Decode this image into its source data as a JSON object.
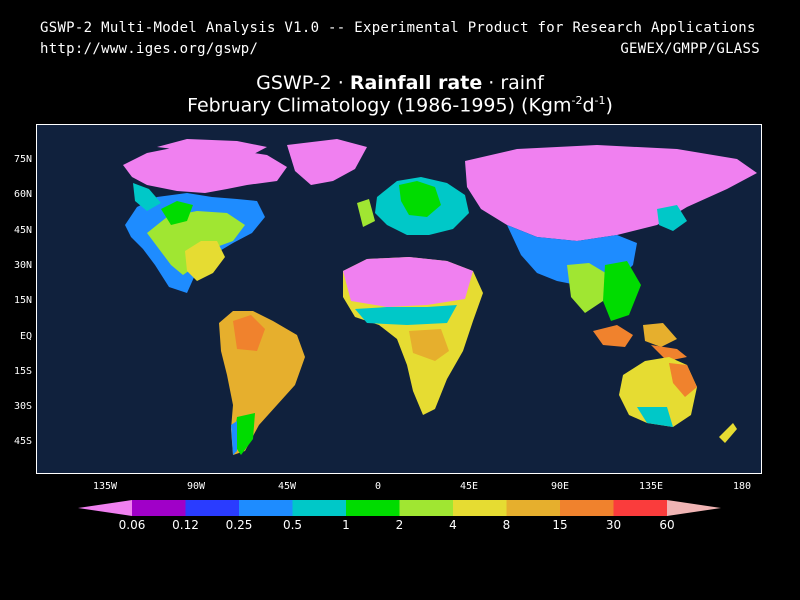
{
  "header": {
    "line1": "GSWP-2 Multi-Model Analysis V1.0 -- Experimental Product for Research Applications",
    "url": "http://www.iges.org/gswp/",
    "credit": "GEWEX/GMPP/GLASS"
  },
  "title": {
    "part1": "GSWP-2 · ",
    "bold": "Rainfall rate",
    "part2": " · rainf",
    "line2a": "February Climatology (1986-1995) (Kgm",
    "sup1": "-2",
    "line2b": "d",
    "sup2": "-1",
    "line2c": ")"
  },
  "map": {
    "ocean_color": "#10213d",
    "lat_labels": [
      "75N",
      "60N",
      "45N",
      "30N",
      "15N",
      "EQ",
      "15S",
      "30S",
      "45S"
    ],
    "lon_labels": [
      "135W",
      "90W",
      "45W",
      "0",
      "45E",
      "90E",
      "135E",
      "180"
    ]
  },
  "colorbar": {
    "colors": [
      "#f080f0",
      "#a000c8",
      "#2a3cff",
      "#1e8cff",
      "#00c8c8",
      "#00dc00",
      "#a0e632",
      "#e6dc32",
      "#e6af2d",
      "#f0822d",
      "#fa3c3c",
      "#f0b4b4"
    ],
    "labels": [
      "0.06",
      "0.12",
      "0.25",
      "0.5",
      "1",
      "2",
      "4",
      "8",
      "15",
      "30",
      "60"
    ]
  }
}
